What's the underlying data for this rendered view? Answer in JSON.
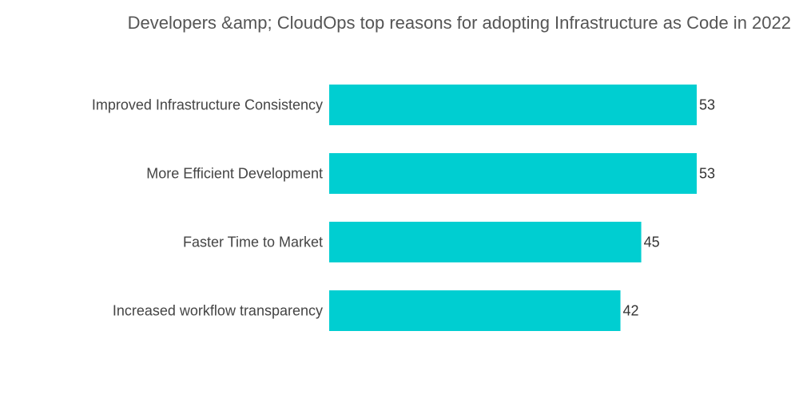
{
  "chart_data": {
    "type": "bar",
    "orientation": "horizontal",
    "title": "Developers &amp; CloudOps top reasons for adopting Infrastructure as Code in 2022",
    "categories": [
      "Improved Infrastructure Consistency",
      "More Efficient Development",
      "Faster Time to Market",
      "Increased workflow transparency"
    ],
    "values": [
      53,
      53,
      45,
      42
    ],
    "xlabel": "",
    "ylabel": "",
    "grid": false,
    "legend": "none",
    "data_labels": true,
    "bar_color": "#00CED1"
  }
}
